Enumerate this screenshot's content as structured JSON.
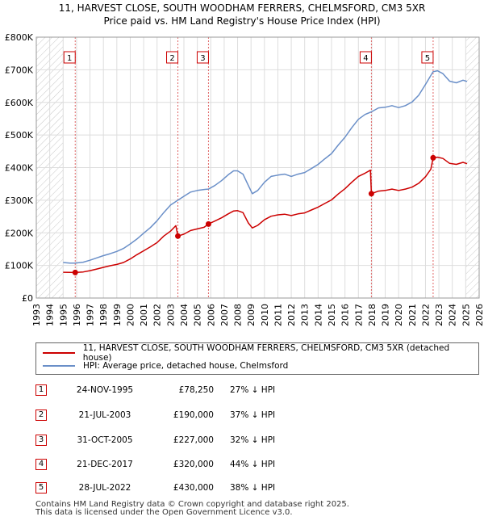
{
  "header": {
    "title": "11, HARVEST CLOSE, SOUTH WOODHAM FERRERS, CHELMSFORD, CM3 5XR",
    "subtitle": "Price paid vs. HM Land Registry's House Price Index (HPI)"
  },
  "colors": {
    "price_line": "#cc0000",
    "hpi_line": "#6a8fc8",
    "marker_box": "#cc0000"
  },
  "chart_data": {
    "type": "line",
    "xlim": [
      1993,
      2026
    ],
    "ylim": [
      0,
      800000
    ],
    "x_ticks": [
      "1993",
      "1994",
      "1995",
      "1996",
      "1997",
      "1998",
      "1999",
      "2000",
      "2001",
      "2002",
      "2003",
      "2004",
      "2005",
      "2006",
      "2007",
      "2008",
      "2009",
      "2010",
      "2011",
      "2012",
      "2013",
      "2014",
      "2015",
      "2016",
      "2017",
      "2018",
      "2019",
      "2020",
      "2021",
      "2022",
      "2023",
      "2024",
      "2025",
      "2026"
    ],
    "y_ticks": [
      {
        "value": 0,
        "label": "£0"
      },
      {
        "value": 100000,
        "label": "£100K"
      },
      {
        "value": 200000,
        "label": "£200K"
      },
      {
        "value": 300000,
        "label": "£300K"
      },
      {
        "value": 400000,
        "label": "£400K"
      },
      {
        "value": 500000,
        "label": "£500K"
      },
      {
        "value": 600000,
        "label": "£600K"
      },
      {
        "value": 700000,
        "label": "£700K"
      },
      {
        "value": 800000,
        "label": "£800K"
      }
    ],
    "grid": true,
    "hatched_ranges": [
      [
        1993,
        1995.0
      ],
      [
        2025.0,
        2026
      ]
    ],
    "series": [
      {
        "name": "11, HARVEST CLOSE, SOUTH WOODHAM FERRERS, CHELMSFORD, CM3 5XR (detached house)",
        "points": [
          [
            1995.0,
            79000
          ],
          [
            1995.5,
            78500
          ],
          [
            1995.9,
            78250
          ],
          [
            1996.5,
            80000
          ],
          [
            1997.0,
            84000
          ],
          [
            1997.5,
            89000
          ],
          [
            1998.0,
            94000
          ],
          [
            1998.5,
            99000
          ],
          [
            1999.0,
            103000
          ],
          [
            1999.5,
            109000
          ],
          [
            2000.0,
            120000
          ],
          [
            2000.5,
            133000
          ],
          [
            2001.0,
            145000
          ],
          [
            2001.5,
            157000
          ],
          [
            2002.0,
            170000
          ],
          [
            2002.5,
            190000
          ],
          [
            2003.0,
            205000
          ],
          [
            2003.4,
            222000
          ],
          [
            2003.55,
            190000
          ],
          [
            2004.0,
            196000
          ],
          [
            2004.5,
            207000
          ],
          [
            2005.0,
            212000
          ],
          [
            2005.5,
            217000
          ],
          [
            2005.83,
            227000
          ],
          [
            2006.3,
            236000
          ],
          [
            2006.8,
            246000
          ],
          [
            2007.3,
            258000
          ],
          [
            2007.7,
            267000
          ],
          [
            2008.0,
            268000
          ],
          [
            2008.4,
            262000
          ],
          [
            2008.8,
            230000
          ],
          [
            2009.1,
            215000
          ],
          [
            2009.5,
            223000
          ],
          [
            2010.0,
            240000
          ],
          [
            2010.5,
            251000
          ],
          [
            2011.0,
            255000
          ],
          [
            2011.5,
            257000
          ],
          [
            2012.0,
            253000
          ],
          [
            2012.5,
            258000
          ],
          [
            2013.0,
            261000
          ],
          [
            2013.5,
            270000
          ],
          [
            2014.0,
            279000
          ],
          [
            2014.5,
            290000
          ],
          [
            2015.0,
            301000
          ],
          [
            2015.5,
            319000
          ],
          [
            2016.0,
            335000
          ],
          [
            2016.5,
            355000
          ],
          [
            2017.0,
            373000
          ],
          [
            2017.5,
            383000
          ],
          [
            2017.9,
            392000
          ],
          [
            2017.97,
            320000
          ],
          [
            2018.5,
            328000
          ],
          [
            2019.0,
            330000
          ],
          [
            2019.5,
            334000
          ],
          [
            2020.0,
            330000
          ],
          [
            2020.5,
            334000
          ],
          [
            2021.0,
            340000
          ],
          [
            2021.5,
            352000
          ],
          [
            2022.0,
            372000
          ],
          [
            2022.4,
            395000
          ],
          [
            2022.57,
            430000
          ],
          [
            2022.9,
            432000
          ],
          [
            2023.3,
            428000
          ],
          [
            2023.8,
            413000
          ],
          [
            2024.3,
            410000
          ],
          [
            2024.8,
            416000
          ],
          [
            2025.1,
            412000
          ]
        ]
      },
      {
        "name": "HPI: Average price, detached house, Chelmsford",
        "points": [
          [
            1995.0,
            109000
          ],
          [
            1995.5,
            107000
          ],
          [
            1995.9,
            107000
          ],
          [
            1996.5,
            110000
          ],
          [
            1997.0,
            116000
          ],
          [
            1997.5,
            123000
          ],
          [
            1998.0,
            130000
          ],
          [
            1998.5,
            136000
          ],
          [
            1999.0,
            143000
          ],
          [
            1999.5,
            152000
          ],
          [
            2000.0,
            166000
          ],
          [
            2000.5,
            181000
          ],
          [
            2001.0,
            199000
          ],
          [
            2001.5,
            216000
          ],
          [
            2002.0,
            237000
          ],
          [
            2002.5,
            262000
          ],
          [
            2003.0,
            285000
          ],
          [
            2003.55,
            300000
          ],
          [
            2004.0,
            312000
          ],
          [
            2004.5,
            325000
          ],
          [
            2005.0,
            330000
          ],
          [
            2005.5,
            333000
          ],
          [
            2005.83,
            334000
          ],
          [
            2006.3,
            345000
          ],
          [
            2006.8,
            360000
          ],
          [
            2007.3,
            378000
          ],
          [
            2007.7,
            390000
          ],
          [
            2008.0,
            390000
          ],
          [
            2008.4,
            380000
          ],
          [
            2008.8,
            345000
          ],
          [
            2009.1,
            320000
          ],
          [
            2009.5,
            330000
          ],
          [
            2010.0,
            355000
          ],
          [
            2010.5,
            373000
          ],
          [
            2011.0,
            377000
          ],
          [
            2011.5,
            380000
          ],
          [
            2012.0,
            373000
          ],
          [
            2012.5,
            380000
          ],
          [
            2013.0,
            385000
          ],
          [
            2013.5,
            397000
          ],
          [
            2014.0,
            410000
          ],
          [
            2014.5,
            427000
          ],
          [
            2015.0,
            443000
          ],
          [
            2015.5,
            469000
          ],
          [
            2016.0,
            493000
          ],
          [
            2016.5,
            522000
          ],
          [
            2017.0,
            548000
          ],
          [
            2017.5,
            563000
          ],
          [
            2017.97,
            571000
          ],
          [
            2018.5,
            583000
          ],
          [
            2019.0,
            585000
          ],
          [
            2019.5,
            590000
          ],
          [
            2020.0,
            584000
          ],
          [
            2020.5,
            590000
          ],
          [
            2021.0,
            601000
          ],
          [
            2021.5,
            622000
          ],
          [
            2022.0,
            655000
          ],
          [
            2022.57,
            694000
          ],
          [
            2022.9,
            697000
          ],
          [
            2023.3,
            688000
          ],
          [
            2023.8,
            665000
          ],
          [
            2024.3,
            660000
          ],
          [
            2024.8,
            668000
          ],
          [
            2025.1,
            664000
          ]
        ]
      }
    ],
    "sales": [
      {
        "label": "1",
        "x": 1995.9,
        "y": 78250
      },
      {
        "label": "2",
        "x": 2003.55,
        "y": 190000
      },
      {
        "label": "3",
        "x": 2005.83,
        "y": 227000
      },
      {
        "label": "4",
        "x": 2017.97,
        "y": 320000
      },
      {
        "label": "5",
        "x": 2022.57,
        "y": 430000
      }
    ]
  },
  "legend": {
    "price_label": "11, HARVEST CLOSE, SOUTH WOODHAM FERRERS, CHELMSFORD, CM3 5XR (detached house)",
    "hpi_label": "HPI: Average price, detached house, Chelmsford"
  },
  "transactions": [
    {
      "num": "1",
      "date": "24-NOV-1995",
      "price": "£78,250",
      "hpi": "27% ↓ HPI"
    },
    {
      "num": "2",
      "date": "21-JUL-2003",
      "price": "£190,000",
      "hpi": "37% ↓ HPI"
    },
    {
      "num": "3",
      "date": "31-OCT-2005",
      "price": "£227,000",
      "hpi": "32% ↓ HPI"
    },
    {
      "num": "4",
      "date": "21-DEC-2017",
      "price": "£320,000",
      "hpi": "44% ↓ HPI"
    },
    {
      "num": "5",
      "date": "28-JUL-2022",
      "price": "£430,000",
      "hpi": "38% ↓ HPI"
    }
  ],
  "footer": {
    "line1": "Contains HM Land Registry data © Crown copyright and database right 2025.",
    "line2": "This data is licensed under the Open Government Licence v3.0."
  }
}
